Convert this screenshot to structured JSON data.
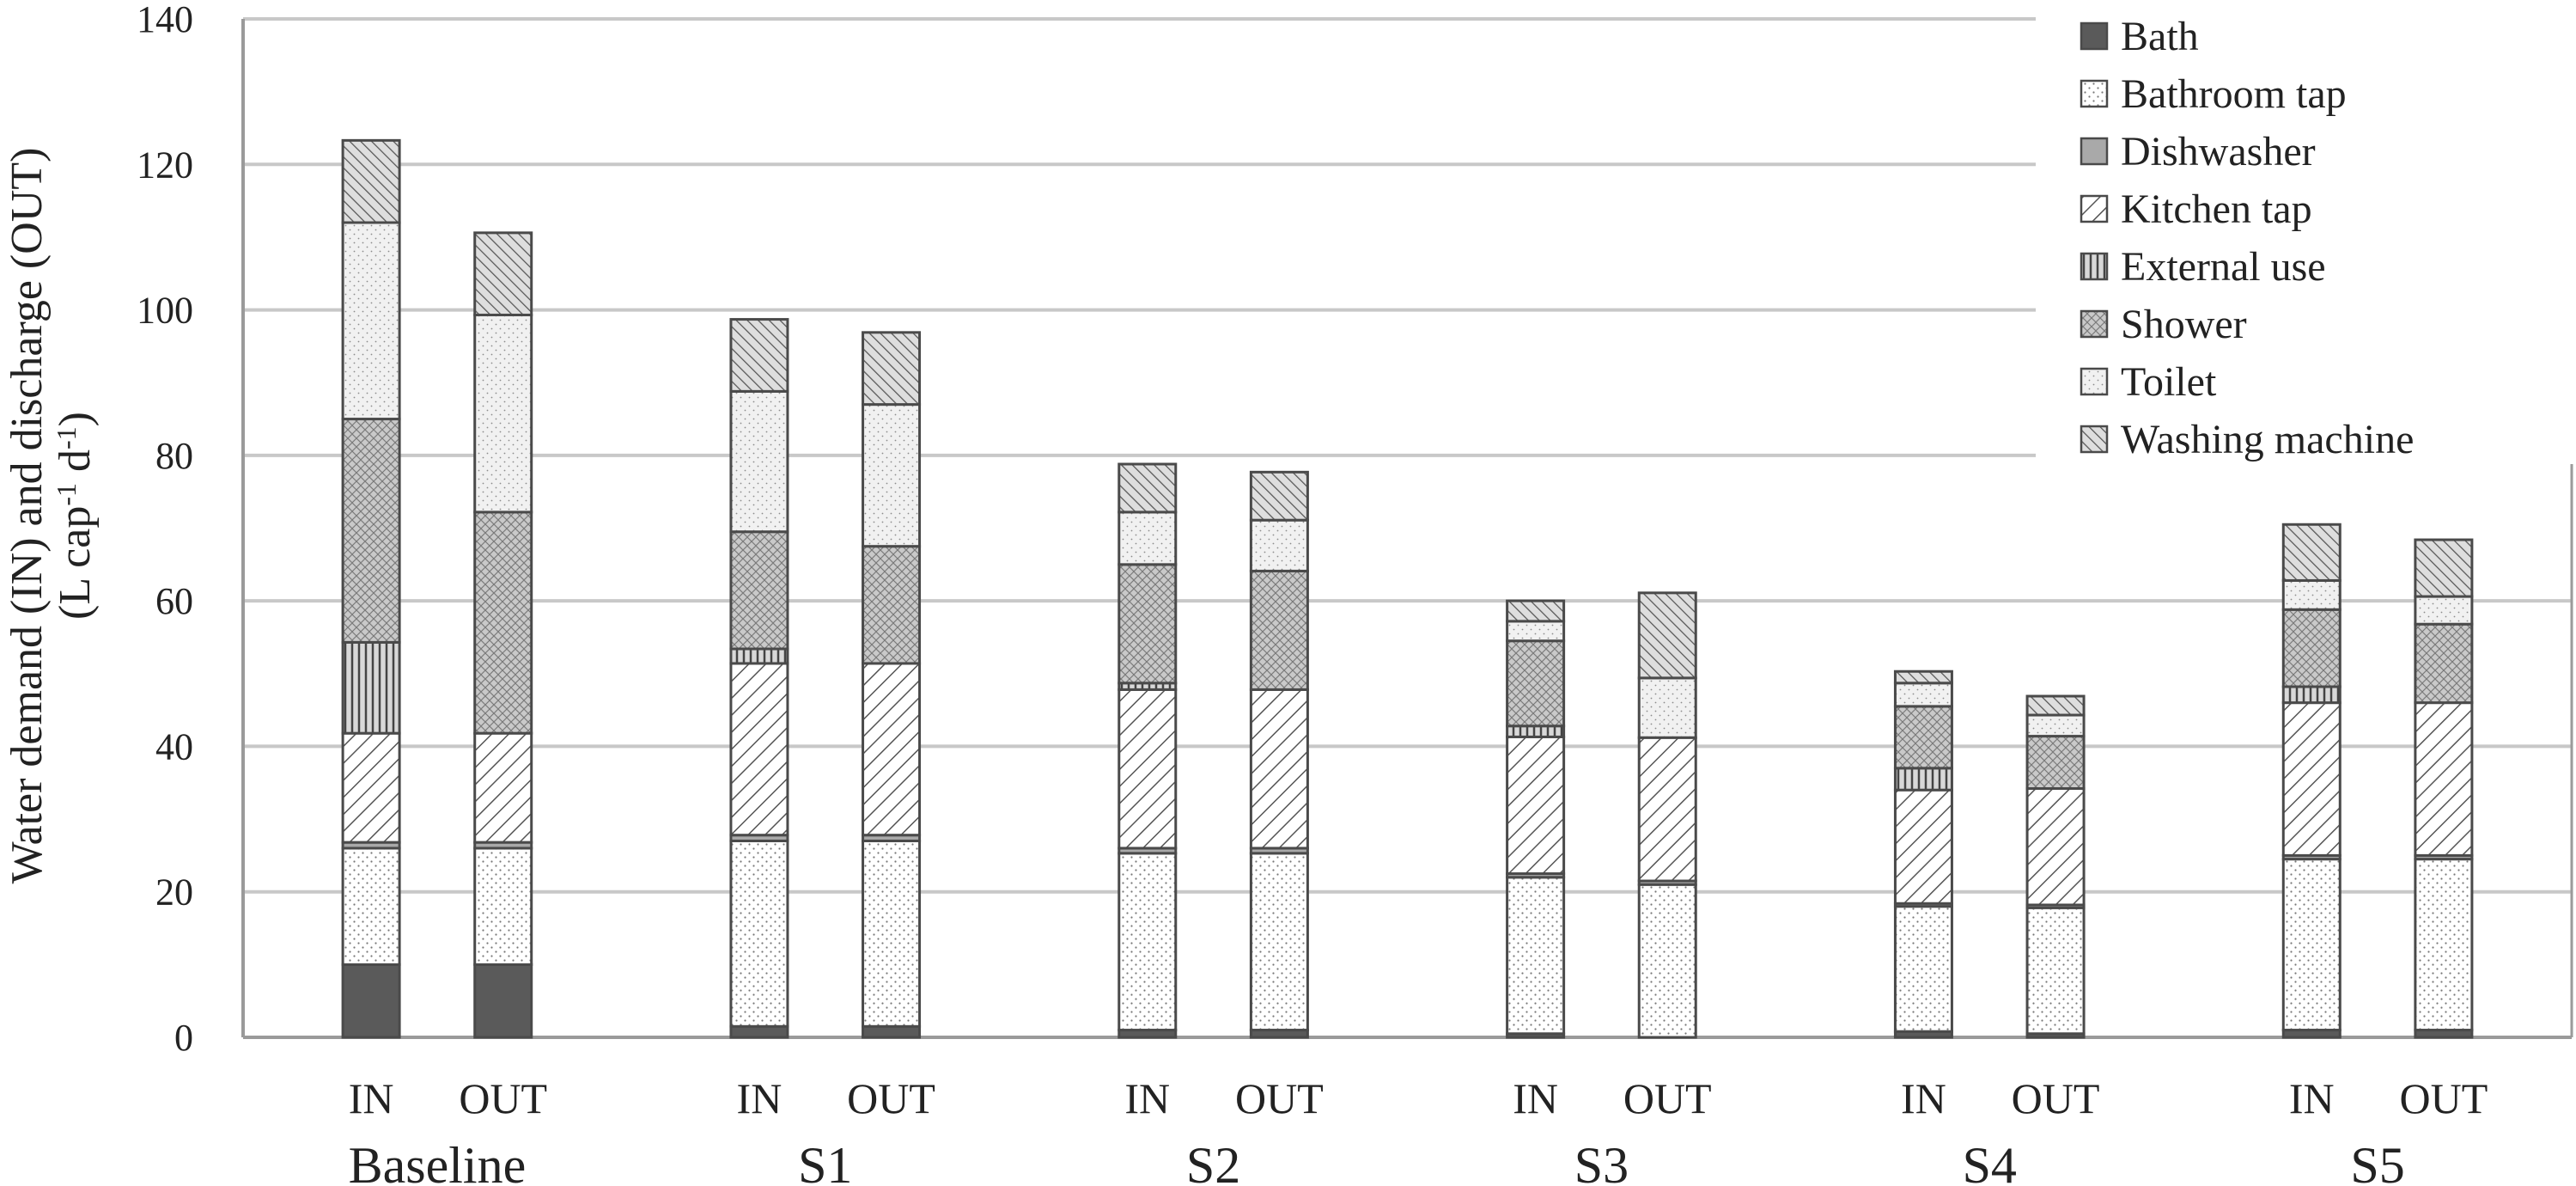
{
  "chart_data": {
    "type": "bar",
    "stacked": true,
    "ylabel_line1": "Water demand (IN) and discharge (OUT)",
    "ylabel_line2": "(L cap-1 d-1)",
    "ylabel_unit_base": "(L cap",
    "ylabel_unit_sup1": "-1",
    "ylabel_unit_mid": " d",
    "ylabel_unit_sup2": "-1",
    "ylabel_unit_end": ")",
    "ylim": [
      0,
      140
    ],
    "yticks": [
      0,
      20,
      40,
      60,
      80,
      100,
      120,
      140
    ],
    "grid": true,
    "legend_position": "top-right",
    "groups": [
      "Baseline",
      "S1",
      "S2",
      "S3",
      "S4",
      "S5"
    ],
    "sub_categories": [
      "IN",
      "OUT"
    ],
    "categories": [
      "Baseline IN",
      "Baseline OUT",
      "S1 IN",
      "S1 OUT",
      "S2 IN",
      "S2 OUT",
      "S3 IN",
      "S3 OUT",
      "S4 IN",
      "S4 OUT",
      "S5 IN",
      "S5 OUT"
    ],
    "series": [
      {
        "name": "Bath",
        "values": [
          10,
          10,
          1.5,
          1.5,
          1,
          1,
          0.5,
          0,
          0.8,
          0.5,
          1,
          1
        ]
      },
      {
        "name": "Bathroom tap",
        "values": [
          16,
          16,
          25.5,
          25.5,
          24.3,
          24.3,
          21.5,
          21,
          17.2,
          17.3,
          23.5,
          23.5
        ]
      },
      {
        "name": "Dishwasher",
        "values": [
          0.8,
          0.8,
          0.8,
          0.8,
          0.7,
          0.7,
          0.5,
          0.5,
          0.4,
          0.4,
          0.5,
          0.5
        ]
      },
      {
        "name": "Kitchen tap",
        "values": [
          15,
          15,
          23.6,
          23.6,
          21.8,
          21.8,
          18.8,
          19.7,
          15.6,
          16,
          21,
          21
        ]
      },
      {
        "name": "External use",
        "values": [
          12.5,
          0,
          2,
          0,
          0.9,
          0,
          1.5,
          0,
          3,
          0,
          2.2,
          0
        ]
      },
      {
        "name": "Shower",
        "values": [
          30.7,
          30.4,
          16.1,
          16.1,
          16.3,
          16.3,
          11.7,
          0,
          8.5,
          7.2,
          10.6,
          10.8
        ]
      },
      {
        "name": "Toilet",
        "values": [
          27,
          27.1,
          19.3,
          19.5,
          7.2,
          7,
          2.7,
          8.2,
          3.2,
          2.9,
          4,
          3.8
        ]
      },
      {
        "name": "Washing machine",
        "values": [
          11.3,
          11.3,
          9.9,
          9.9,
          6.6,
          6.6,
          2.8,
          11.7,
          1.6,
          2.6,
          7.7,
          7.8
        ]
      }
    ]
  }
}
